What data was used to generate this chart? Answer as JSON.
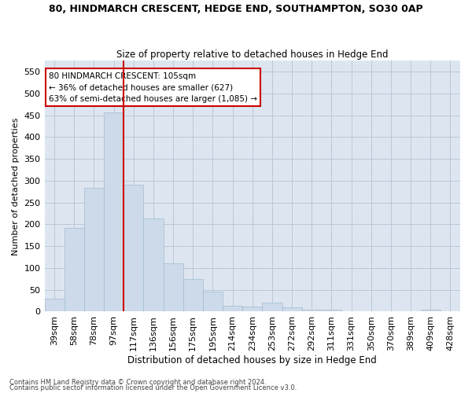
{
  "title": "80, HINDMARCH CRESCENT, HEDGE END, SOUTHAMPTON, SO30 0AP",
  "subtitle": "Size of property relative to detached houses in Hedge End",
  "xlabel": "Distribution of detached houses by size in Hedge End",
  "ylabel": "Number of detached properties",
  "bar_color": "#cddaea",
  "bar_edge_color": "#a0bcd0",
  "grid_color": "#b8c8d8",
  "background_color": "#dde6f0",
  "categories": [
    "39sqm",
    "58sqm",
    "78sqm",
    "97sqm",
    "117sqm",
    "136sqm",
    "156sqm",
    "175sqm",
    "195sqm",
    "214sqm",
    "234sqm",
    "253sqm",
    "272sqm",
    "292sqm",
    "311sqm",
    "331sqm",
    "350sqm",
    "370sqm",
    "389sqm",
    "409sqm",
    "428sqm"
  ],
  "values": [
    30,
    191,
    284,
    457,
    291,
    213,
    110,
    75,
    46,
    13,
    12,
    21,
    10,
    5,
    5,
    0,
    0,
    0,
    0,
    5,
    0
  ],
  "vline_x": 3.5,
  "vline_color": "#cc0000",
  "annotation_text": "80 HINDMARCH CRESCENT: 105sqm\n← 36% of detached houses are smaller (627)\n63% of semi-detached houses are larger (1,085) →",
  "annotation_box_color": "#ffffff",
  "annotation_border_color": "#cc0000",
  "ylim": [
    0,
    575
  ],
  "yticks": [
    0,
    50,
    100,
    150,
    200,
    250,
    300,
    350,
    400,
    450,
    500,
    550
  ],
  "footnote1": "Contains HM Land Registry data © Crown copyright and database right 2024.",
  "footnote2": "Contains public sector information licensed under the Open Government Licence v3.0.",
  "title_fontsize": 9,
  "subtitle_fontsize": 9
}
